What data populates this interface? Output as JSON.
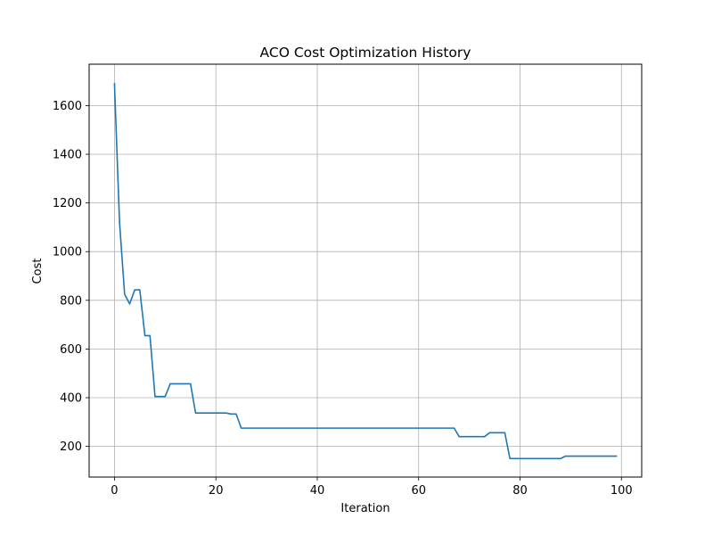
{
  "chart_data": {
    "type": "line",
    "title": "ACO Cost Optimization History",
    "xlabel": "Iteration",
    "ylabel": "Cost",
    "xlim": [
      -5,
      104
    ],
    "ylim": [
      74,
      1770
    ],
    "xticks": [
      0,
      20,
      40,
      60,
      80,
      100
    ],
    "yticks": [
      200,
      400,
      600,
      800,
      1000,
      1200,
      1400,
      1600
    ],
    "grid": true,
    "line_color": "#1f77b4",
    "series": [
      {
        "x": [
          0,
          1,
          2,
          3,
          4,
          5,
          6,
          7,
          8,
          9,
          10,
          11,
          12,
          13,
          14,
          15,
          16,
          17,
          18,
          19,
          20,
          21,
          22,
          23,
          24,
          25,
          26,
          27,
          28,
          29,
          30,
          31,
          32,
          33,
          34,
          35,
          36,
          37,
          38,
          39,
          40,
          41,
          42,
          43,
          44,
          45,
          46,
          47,
          48,
          49,
          50,
          51,
          52,
          53,
          54,
          55,
          56,
          57,
          58,
          59,
          60,
          61,
          62,
          63,
          64,
          65,
          66,
          67,
          68,
          69,
          70,
          71,
          72,
          73,
          74,
          75,
          76,
          77,
          78,
          79,
          80,
          81,
          82,
          83,
          84,
          85,
          86,
          87,
          88,
          89,
          90,
          91,
          92,
          93,
          94,
          95,
          96,
          97,
          98,
          99
        ],
        "values": [
          1690,
          1120,
          825,
          785,
          843,
          843,
          655,
          655,
          405,
          405,
          405,
          457,
          457,
          457,
          457,
          457,
          337,
          337,
          337,
          337,
          337,
          337,
          337,
          333,
          333,
          275,
          275,
          275,
          275,
          275,
          275,
          275,
          275,
          275,
          275,
          275,
          275,
          275,
          275,
          275,
          275,
          275,
          275,
          275,
          275,
          275,
          275,
          275,
          275,
          275,
          275,
          275,
          275,
          275,
          275,
          275,
          275,
          275,
          275,
          275,
          275,
          275,
          275,
          275,
          275,
          275,
          275,
          275,
          240,
          240,
          240,
          240,
          240,
          240,
          256,
          256,
          256,
          256,
          150,
          150,
          150,
          150,
          150,
          150,
          150,
          150,
          150,
          150,
          150,
          160,
          160,
          160,
          160,
          160,
          160,
          160,
          160,
          160,
          160,
          160
        ]
      }
    ]
  }
}
